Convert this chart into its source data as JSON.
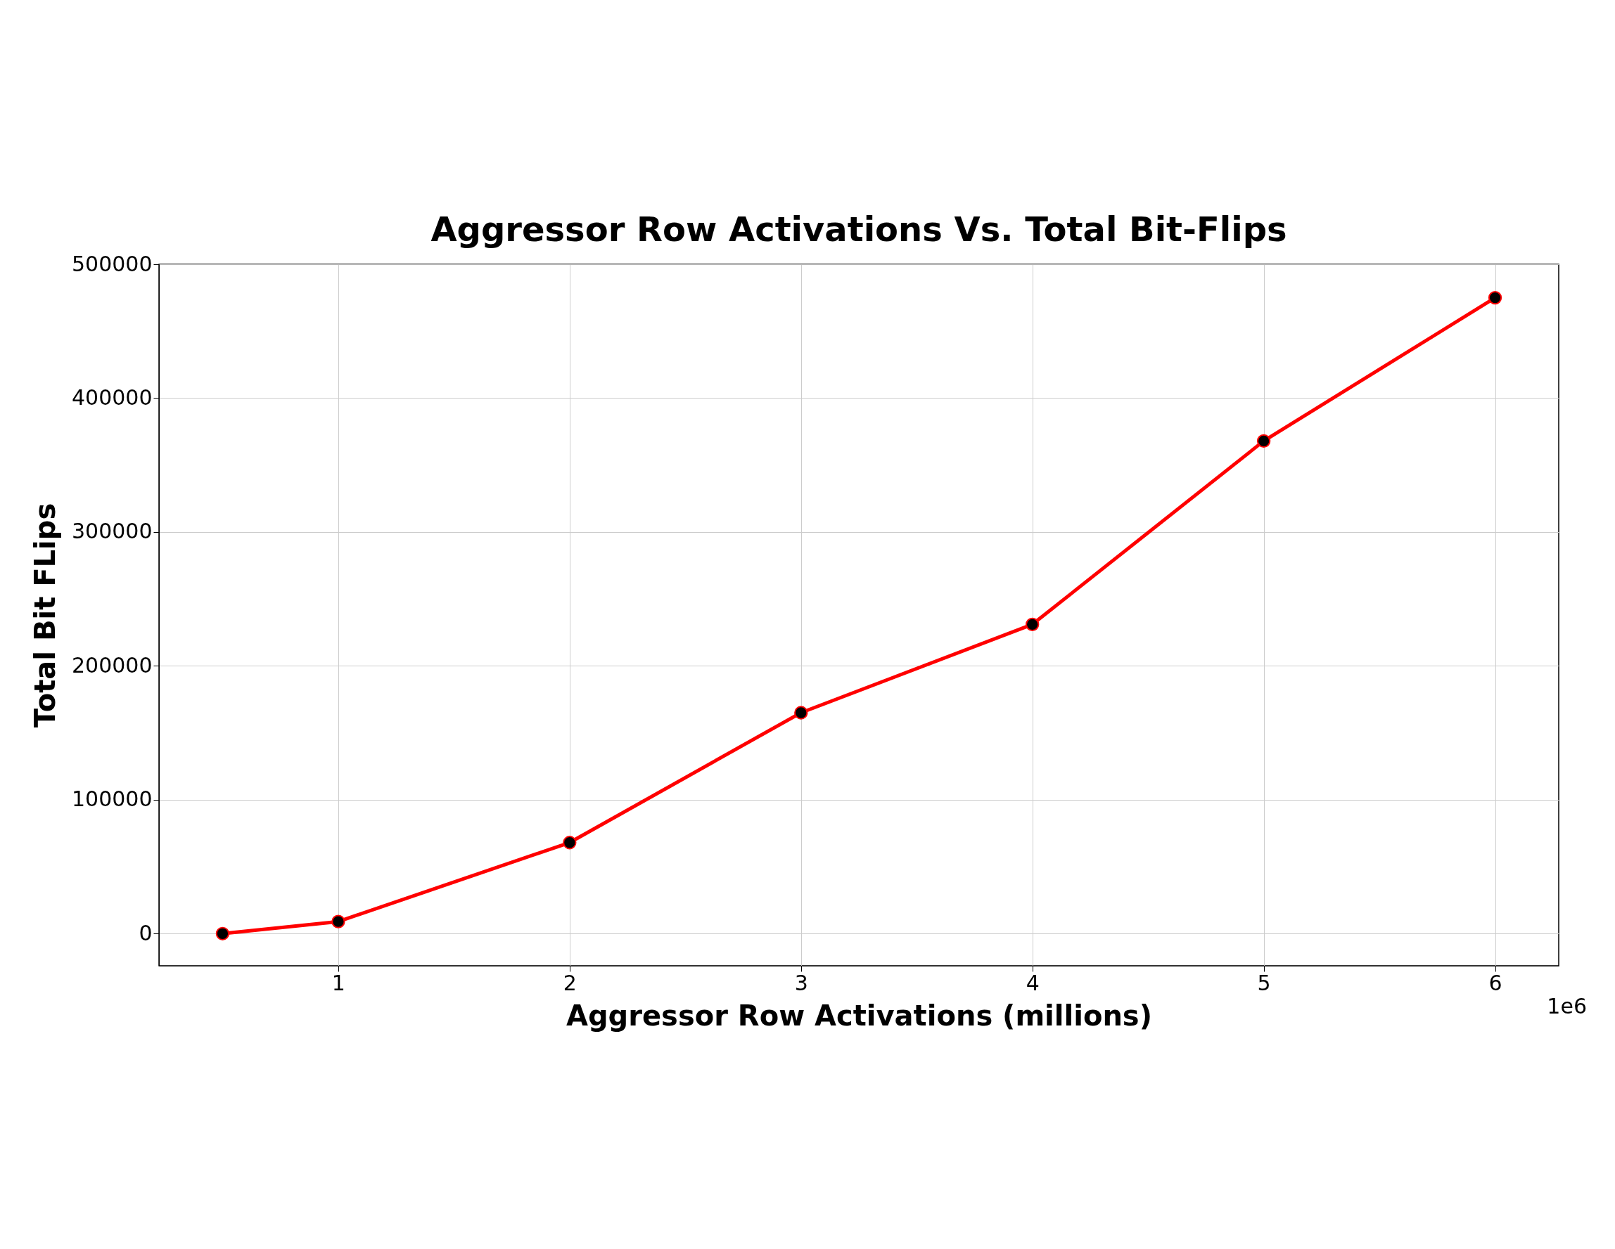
{
  "chart_data": {
    "type": "line",
    "title": "Aggressor Row Activations Vs. Total Bit-Flips",
    "xlabel": "Aggressor Row Activations (millions)",
    "ylabel": "Total Bit FLips",
    "x": [
      0.5,
      1,
      2,
      3,
      4,
      5,
      6
    ],
    "series": [
      {
        "color": "#ff0000",
        "values": [
          0,
          9000,
          68000,
          165000,
          231000,
          368000,
          475000
        ]
      }
    ],
    "xlim": [
      0.225,
      6.275
    ],
    "xticks": [
      1,
      2,
      3,
      4,
      5,
      6
    ],
    "ylim": [
      -24000,
      500000
    ],
    "yticks": [
      0,
      100000,
      200000,
      300000,
      400000,
      500000
    ],
    "annotations": [
      "1e6"
    ],
    "grid": true,
    "marker": "circle",
    "line_style": "solid"
  }
}
